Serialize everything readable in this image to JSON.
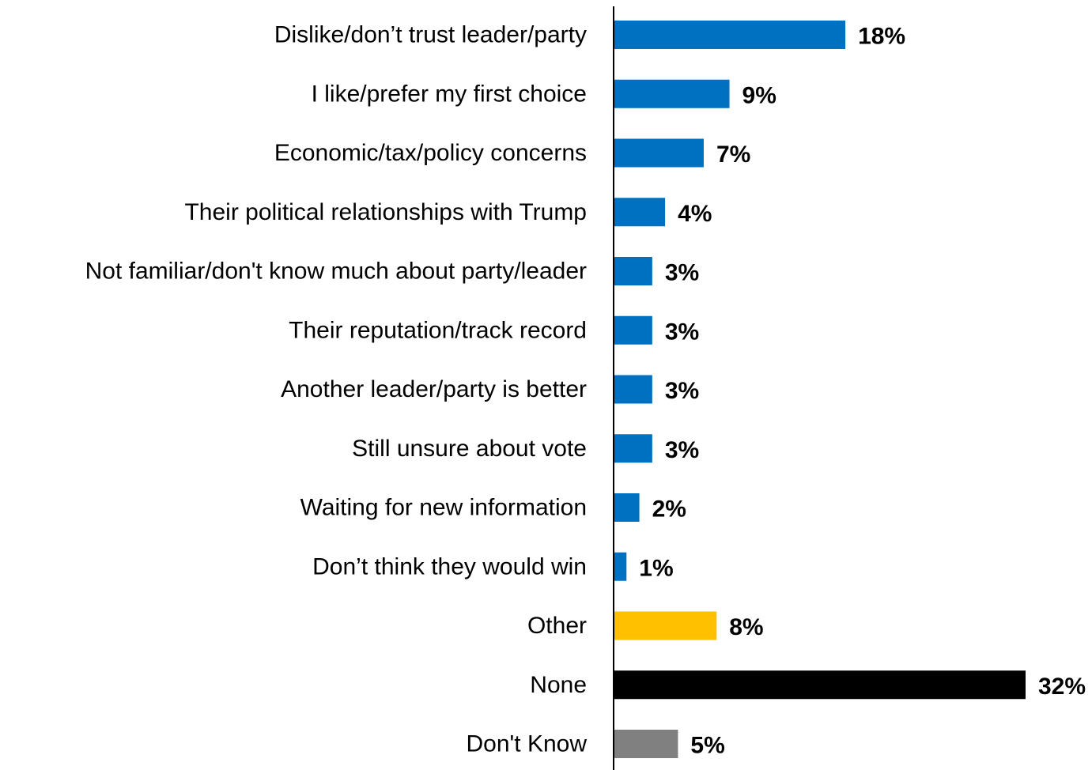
{
  "chart_data": {
    "type": "bar",
    "orientation": "horizontal",
    "categories": [
      "Dislike/don’t trust leader/party",
      "I like/prefer my first choice",
      "Economic/tax/policy concerns",
      "Their political relationships with Trump",
      "Not familiar/don't know much about party/leader",
      "Their reputation/track record",
      "Another leader/party is better",
      "Still unsure about vote",
      "Waiting for new information",
      "Don’t think they would win",
      "Other",
      "None",
      "Don't Know"
    ],
    "values": [
      18,
      9,
      7,
      4,
      3,
      3,
      3,
      3,
      2,
      1,
      8,
      32,
      5
    ],
    "value_labels": [
      "18%",
      "9%",
      "7%",
      "4%",
      "3%",
      "3%",
      "3%",
      "3%",
      "2%",
      "1%",
      "8%",
      "32%",
      "5%"
    ],
    "bar_colors": [
      "#0070C0",
      "#0070C0",
      "#0070C0",
      "#0070C0",
      "#0070C0",
      "#0070C0",
      "#0070C0",
      "#0070C0",
      "#0070C0",
      "#0070C0",
      "#FFC000",
      "#000000",
      "#808080"
    ],
    "title": "",
    "xlabel": "",
    "ylabel": "",
    "xlim": [
      0,
      32
    ],
    "grid": false,
    "legend": "none"
  }
}
